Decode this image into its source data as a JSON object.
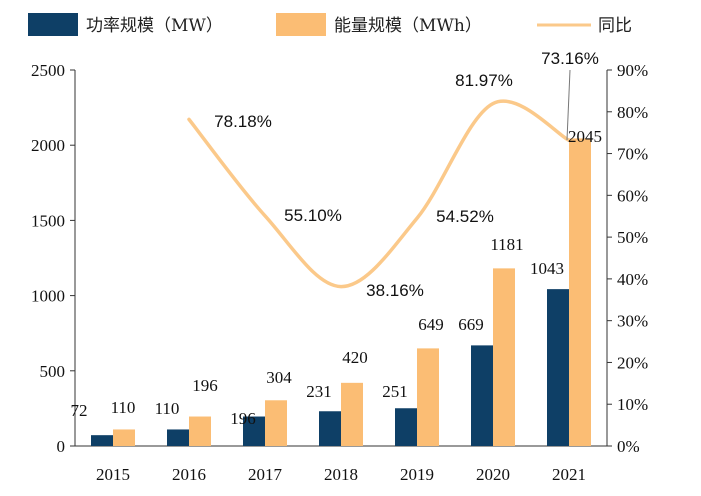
{
  "chart_data": {
    "type": "bar",
    "categories": [
      "2015",
      "2016",
      "2017",
      "2018",
      "2019",
      "2020",
      "2021"
    ],
    "series": [
      {
        "name": "功率规模（MW）",
        "type": "bar",
        "axis": "left",
        "color": "#0e3f66",
        "values": [
          72,
          110,
          196,
          231,
          251,
          669,
          1043
        ],
        "labels": [
          "72",
          "110",
          "196",
          "231",
          "251",
          "669",
          "1043"
        ]
      },
      {
        "name": "能量规模（MWh）",
        "type": "bar",
        "axis": "left",
        "color": "#fbbd74",
        "values": [
          110,
          196,
          304,
          420,
          649,
          1181,
          2045
        ],
        "labels": [
          "110",
          "196",
          "304",
          "420",
          "649",
          "1181",
          "2045"
        ]
      },
      {
        "name": "同比",
        "type": "line",
        "axis": "right",
        "color": "#fbc98a",
        "values": [
          null,
          78.18,
          55.1,
          38.16,
          54.52,
          81.97,
          73.16
        ],
        "labels": [
          "",
          "78.18%",
          "55.10%",
          "38.16%",
          "54.52%",
          "81.97%",
          "73.16%"
        ]
      }
    ],
    "y_left": {
      "lim": [
        0,
        2500
      ],
      "ticks": [
        "0",
        "500",
        "1000",
        "1500",
        "2000",
        "2500"
      ]
    },
    "y_right": {
      "lim": [
        0,
        90
      ],
      "ticks": [
        "0%",
        "10%",
        "20%",
        "30%",
        "40%",
        "50%",
        "60%",
        "70%",
        "80%",
        "90%"
      ]
    },
    "legend_position": "top",
    "grid": false,
    "title": "",
    "xlabel": "",
    "ylabel": ""
  }
}
